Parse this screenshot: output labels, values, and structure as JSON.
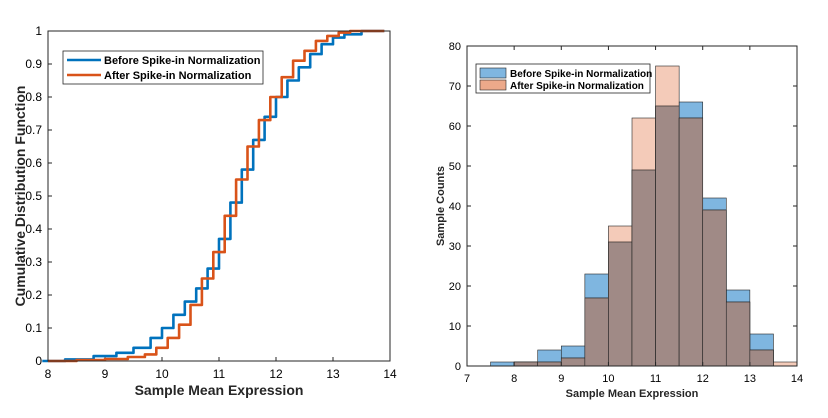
{
  "colors": {
    "before": "#0072BD",
    "after": "#D95319",
    "before_fill": "#7FB6E0",
    "after_fill": "#ECA98A",
    "overlap_fill": "#A08A86"
  },
  "chart_data": [
    {
      "type": "line",
      "title": "",
      "xlabel": "Sample Mean Expression",
      "ylabel": "Cumulative Distribution Function",
      "xlim": [
        8,
        14
      ],
      "ylim": [
        0,
        1
      ],
      "xticks": [
        "8",
        "9",
        "10",
        "11",
        "12",
        "13",
        "14"
      ],
      "yticks": [
        "0",
        "0.1",
        "0.2",
        "0.3",
        "0.4",
        "0.5",
        "0.6",
        "0.7",
        "0.8",
        "0.9",
        "1"
      ],
      "legend_position": "top-left",
      "series": [
        {
          "name": "Before Spike-in Normalization",
          "x": [
            7.9,
            8.3,
            8.8,
            9.2,
            9.5,
            9.8,
            10.0,
            10.2,
            10.4,
            10.6,
            10.8,
            11.0,
            11.2,
            11.4,
            11.6,
            11.8,
            12.0,
            12.2,
            12.4,
            12.6,
            12.8,
            13.0,
            13.2,
            13.5,
            13.9
          ],
          "y": [
            0.0,
            0.005,
            0.015,
            0.025,
            0.04,
            0.07,
            0.1,
            0.14,
            0.18,
            0.22,
            0.28,
            0.37,
            0.48,
            0.58,
            0.67,
            0.74,
            0.8,
            0.85,
            0.89,
            0.93,
            0.96,
            0.98,
            0.99,
            1.0,
            1.0
          ]
        },
        {
          "name": "After Spike-in Normalization",
          "x": [
            8.0,
            8.5,
            9.0,
            9.4,
            9.7,
            9.9,
            10.1,
            10.3,
            10.5,
            10.7,
            10.9,
            11.1,
            11.3,
            11.5,
            11.7,
            11.9,
            12.1,
            12.3,
            12.5,
            12.7,
            12.9,
            13.1,
            13.3,
            13.6,
            13.9
          ],
          "y": [
            0.0,
            0.003,
            0.006,
            0.012,
            0.02,
            0.04,
            0.07,
            0.11,
            0.17,
            0.25,
            0.33,
            0.44,
            0.55,
            0.65,
            0.73,
            0.8,
            0.86,
            0.91,
            0.94,
            0.97,
            0.985,
            0.995,
            1.0,
            1.0,
            1.0
          ]
        }
      ]
    },
    {
      "type": "bar",
      "title": "",
      "xlabel": "Sample Mean Expression",
      "ylabel": "Sample Counts",
      "xlim": [
        7,
        14
      ],
      "ylim": [
        0,
        80
      ],
      "xticks": [
        "7",
        "8",
        "9",
        "10",
        "11",
        "12",
        "13",
        "14"
      ],
      "yticks": [
        "0",
        "10",
        "20",
        "30",
        "40",
        "50",
        "60",
        "70",
        "80"
      ],
      "legend_position": "top-left",
      "bin_edges": [
        7.5,
        8.0,
        8.5,
        9.0,
        9.5,
        10.0,
        10.5,
        11.0,
        11.5,
        12.0,
        12.5,
        13.0,
        13.5,
        14.0
      ],
      "series": [
        {
          "name": "Before Spike-in Normalization",
          "values": [
            1,
            1,
            4,
            5,
            23,
            31,
            49,
            65,
            66,
            42,
            19,
            8,
            0
          ]
        },
        {
          "name": "After Spike-in Normalization",
          "values": [
            0,
            1,
            1,
            2,
            17,
            35,
            62,
            75,
            62,
            39,
            16,
            4,
            1
          ]
        }
      ]
    }
  ]
}
